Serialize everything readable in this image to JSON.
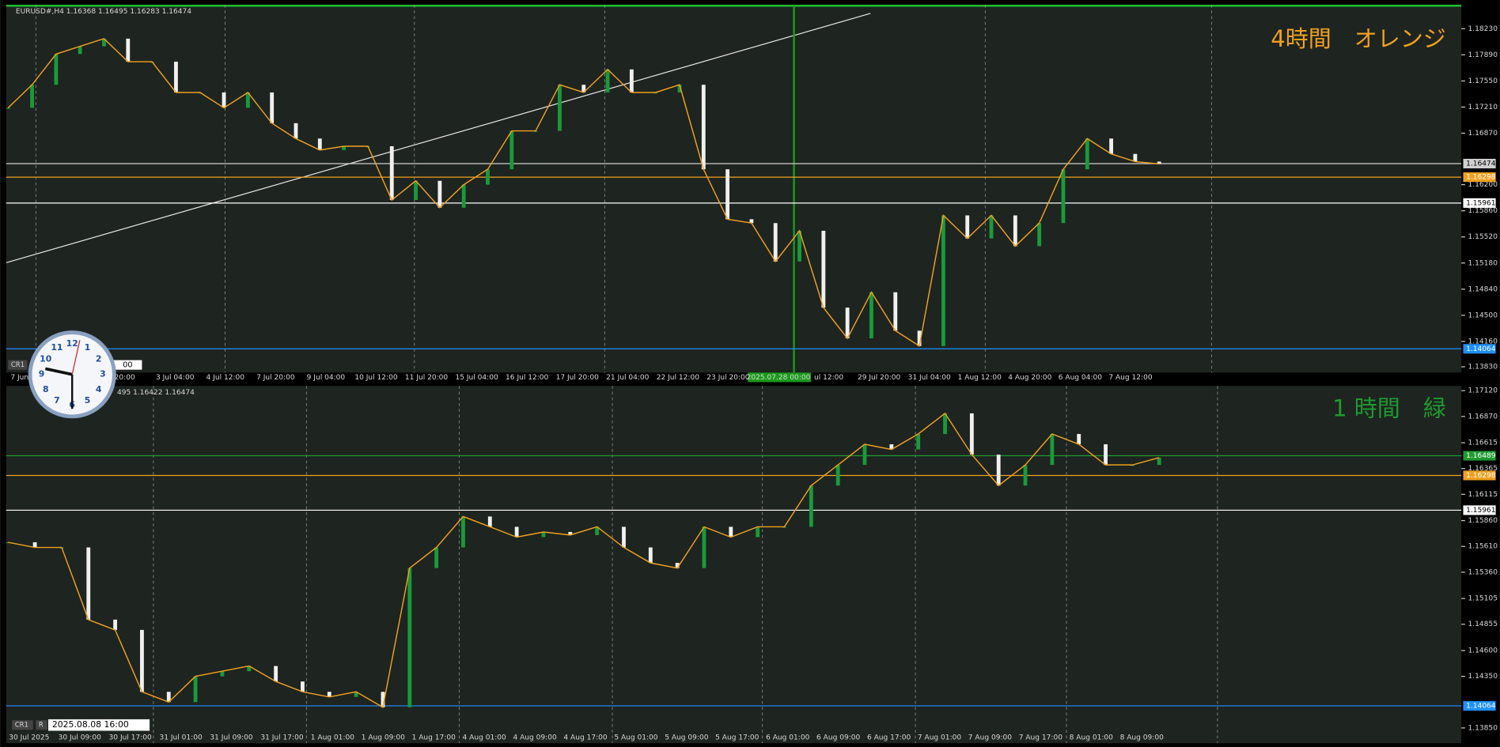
{
  "panels": [
    {
      "header": "EURUSD#,H4  1.16368 1.16495 1.16283 1.16474",
      "title": "4時間　オレンジ",
      "ylim": [
        1.13755,
        1.18541
      ],
      "yticks": [
        {
          "value": 1.1823,
          "label": "1.18230"
        },
        {
          "value": 1.1789,
          "label": "1.17890"
        },
        {
          "value": 1.1755,
          "label": "1.17550"
        },
        {
          "value": 1.1721,
          "label": "1.17210"
        },
        {
          "value": 1.1687,
          "label": "1.16870"
        },
        {
          "value": 1.162,
          "label": "1.16200"
        },
        {
          "value": 1.1586,
          "label": "1.15860"
        },
        {
          "value": 1.1552,
          "label": "1.15520"
        },
        {
          "value": 1.1518,
          "label": "1.15180"
        },
        {
          "value": 1.1484,
          "label": "1.14840"
        },
        {
          "value": 1.145,
          "label": "1.14500"
        },
        {
          "value": 1.1416,
          "label": "1.14160"
        },
        {
          "value": 1.1383,
          "label": "1.13830"
        }
      ],
      "levels": [
        {
          "value": 1.16474,
          "label": "1.16474",
          "color": "#d0d0d0"
        },
        {
          "value": 1.16298,
          "label": "1.16298",
          "color": "#f0a020"
        },
        {
          "value": 1.15961,
          "label": "1.15961",
          "color": "#ffffff"
        },
        {
          "value": 1.14064,
          "label": "1.14064",
          "color": "#1e90ff"
        }
      ],
      "time_labels": [
        "7 Jun",
        "20:00",
        "3 Jul 04:00",
        "4 Jul 12:00",
        "7 Jul 20:00",
        "9 Jul 04:00",
        "10 Jul 12:00",
        "11 Jul 20:00",
        "15 Jul 04:00",
        "16 Jul 12:00",
        "17 Jul 20:00",
        "21 Jul 04:00",
        "22 Jul 12:00",
        "23 Jul 20:00",
        "2025.07.28 00:00",
        "ul 12:00",
        "29 Jul 20:00",
        "31 Jul 04:00",
        "1 Aug 12:00",
        "4 Aug 20:00",
        "6 Aug 04:00",
        "7 Aug 12:00"
      ],
      "closes": [
        1.172,
        1.175,
        1.179,
        1.18,
        1.181,
        1.178,
        1.178,
        1.174,
        1.174,
        1.172,
        1.174,
        1.17,
        1.168,
        1.1665,
        1.167,
        1.167,
        1.16,
        1.1625,
        1.159,
        1.162,
        1.164,
        1.169,
        1.169,
        1.175,
        1.174,
        1.177,
        1.174,
        1.174,
        1.175,
        1.164,
        1.1575,
        1.157,
        1.152,
        1.156,
        1.146,
        1.142,
        1.148,
        1.143,
        1.141,
        1.158,
        1.155,
        1.158,
        1.154,
        1.157,
        1.164,
        1.168,
        1.166,
        1.165,
        1.1647
      ]
    },
    {
      "header": "495 1.16422 1.16474",
      "title": "1 時間　緑",
      "ylim": [
        1.13702,
        1.17166
      ],
      "yticks": [
        {
          "value": 1.1712,
          "label": "1.17120"
        },
        {
          "value": 1.1687,
          "label": "1.16870"
        },
        {
          "value": 1.16615,
          "label": "1.16615"
        },
        {
          "value": 1.16365,
          "label": "1.16365"
        },
        {
          "value": 1.16115,
          "label": "1.16115"
        },
        {
          "value": 1.1586,
          "label": "1.15860"
        },
        {
          "value": 1.1561,
          "label": "1.15610"
        },
        {
          "value": 1.1536,
          "label": "1.15360"
        },
        {
          "value": 1.15105,
          "label": "1.15105"
        },
        {
          "value": 1.14855,
          "label": "1.14855"
        },
        {
          "value": 1.146,
          "label": "1.14600"
        },
        {
          "value": 1.1435,
          "label": "1.14350"
        },
        {
          "value": 1.1385,
          "label": "1.13850"
        }
      ],
      "levels": [
        {
          "value": 1.16489,
          "label": "1.16489",
          "color": "#1f9a2f"
        },
        {
          "value": 1.16298,
          "label": "1.16298",
          "color": "#f0a020"
        },
        {
          "value": 1.15961,
          "label": "1.15961",
          "color": "#ffffff"
        },
        {
          "value": 1.14064,
          "label": "1.14064",
          "color": "#1e90ff"
        }
      ],
      "time_labels": [
        "30 Jul 2025",
        "30 Jul 09:00",
        "30 Jul 17:00",
        "31 Jul 01:00",
        "31 Jul 09:00",
        "31 Jul 17:00",
        "1 Aug 01:00",
        "1 Aug 09:00",
        "1 Aug 17:00",
        "4 Aug 01:00",
        "4 Aug 09:00",
        "4 Aug 17:00",
        "5 Aug 01:00",
        "5 Aug 09:00",
        "5 Aug 17:00",
        "6 Aug 01:00",
        "6 Aug 09:00",
        "6 Aug 17:00",
        "7 Aug 01:00",
        "7 Aug 09:00",
        "7 Aug 17:00",
        "8 Aug 01:00",
        "8 Aug 09:00"
      ],
      "closes": [
        1.1565,
        1.156,
        1.156,
        1.149,
        1.148,
        1.142,
        1.141,
        1.1435,
        1.144,
        1.1445,
        1.143,
        1.142,
        1.1415,
        1.142,
        1.1405,
        1.154,
        1.156,
        1.159,
        1.158,
        1.157,
        1.1575,
        1.1572,
        1.158,
        1.156,
        1.1545,
        1.154,
        1.158,
        1.157,
        1.158,
        1.158,
        1.162,
        1.164,
        1.166,
        1.1655,
        1.167,
        1.169,
        1.165,
        1.162,
        1.164,
        1.167,
        1.166,
        1.164,
        1.164,
        1.1647
      ]
    }
  ],
  "badges": {
    "top_cr": "CR1",
    "bottom_cr": "CR1",
    "r": "R",
    "clock_time": "2025.08.08 16:00",
    "top_clock_time": "00"
  },
  "clock": {
    "numbers": [
      "12",
      "1",
      "2",
      "3",
      "4",
      "5",
      "6",
      "7",
      "8",
      "9",
      "10",
      "11"
    ]
  }
}
